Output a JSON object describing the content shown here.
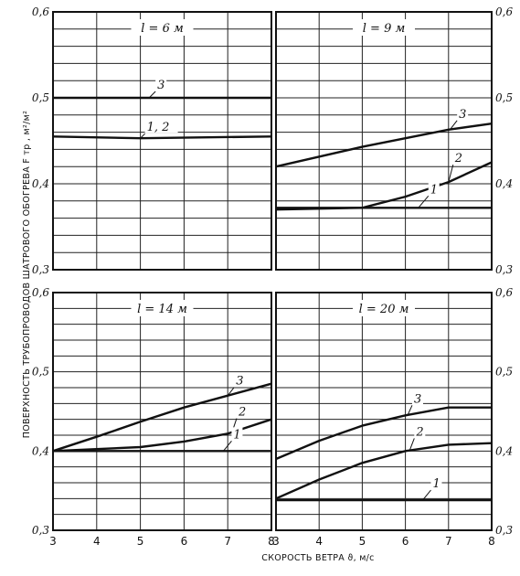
{
  "ylabel": "ПОВЕРХНОСТЬ ТРУБОПРОВОДОВ ШАТРОВОГО ОБОГРЕВА  F тр , м²/м²",
  "xlabel": "СКОРОСТЬ ВЕТРА  ϑ, м/с",
  "chart_data": [
    {
      "type": "line",
      "title": "l = 6 м",
      "xlim": [
        3,
        8
      ],
      "ylim": [
        0.3,
        0.6
      ],
      "x_ticks": [
        "3",
        "4",
        "5",
        "6",
        "7",
        "8"
      ],
      "y_ticks": [
        "0,3",
        "0,4",
        "0,5",
        "0,6"
      ],
      "grid": true,
      "series": [
        {
          "name": "3",
          "x": [
            3,
            8
          ],
          "values": [
            0.5,
            0.5
          ]
        },
        {
          "name": "1, 2",
          "x": [
            3,
            5,
            8
          ],
          "values": [
            0.455,
            0.453,
            0.455
          ]
        }
      ]
    },
    {
      "type": "line",
      "title": "l = 9 м",
      "xlim": [
        3,
        8
      ],
      "ylim": [
        0.3,
        0.6
      ],
      "x_ticks": [
        "3",
        "4",
        "5",
        "6",
        "7",
        "8"
      ],
      "y_ticks": [
        "0,3",
        "0,4",
        "0,5",
        "0,6"
      ],
      "grid": true,
      "series": [
        {
          "name": "3",
          "x": [
            3,
            5,
            7,
            8
          ],
          "values": [
            0.42,
            0.443,
            0.463,
            0.47
          ]
        },
        {
          "name": "2",
          "x": [
            3,
            5,
            6,
            7,
            8
          ],
          "values": [
            0.37,
            0.372,
            0.385,
            0.402,
            0.425
          ]
        },
        {
          "name": "1",
          "x": [
            3,
            8
          ],
          "values": [
            0.372,
            0.372
          ]
        }
      ]
    },
    {
      "type": "line",
      "title": "l = 14 м",
      "xlim": [
        3,
        8
      ],
      "ylim": [
        0.3,
        0.6
      ],
      "x_ticks": [
        "3",
        "4",
        "5",
        "6",
        "7",
        "8"
      ],
      "y_ticks": [
        "0,3",
        "0,4",
        "0,5",
        "0,6"
      ],
      "grid": true,
      "series": [
        {
          "name": "3",
          "x": [
            3,
            4,
            5,
            6,
            7,
            8
          ],
          "values": [
            0.4,
            0.418,
            0.437,
            0.455,
            0.47,
            0.485
          ]
        },
        {
          "name": "2",
          "x": [
            3,
            5,
            6,
            7,
            8
          ],
          "values": [
            0.4,
            0.405,
            0.412,
            0.422,
            0.44
          ]
        },
        {
          "name": "1",
          "x": [
            3,
            8
          ],
          "values": [
            0.4,
            0.4
          ]
        }
      ]
    },
    {
      "type": "line",
      "title": "l = 20 м",
      "xlim": [
        3,
        8
      ],
      "ylim": [
        0.3,
        0.6
      ],
      "x_ticks": [
        "3",
        "4",
        "5",
        "6",
        "7",
        "8"
      ],
      "y_ticks": [
        "0,3",
        "0,4",
        "0,5",
        "0,6"
      ],
      "grid": true,
      "series": [
        {
          "name": "3",
          "x": [
            3,
            4,
            5,
            6,
            7,
            8
          ],
          "values": [
            0.39,
            0.413,
            0.432,
            0.445,
            0.455,
            0.455
          ]
        },
        {
          "name": "2",
          "x": [
            3,
            4,
            5,
            6,
            7,
            8
          ],
          "values": [
            0.34,
            0.364,
            0.385,
            0.4,
            0.408,
            0.41
          ]
        },
        {
          "name": "1",
          "x": [
            3,
            8
          ],
          "values": [
            0.338,
            0.338
          ]
        }
      ]
    }
  ]
}
